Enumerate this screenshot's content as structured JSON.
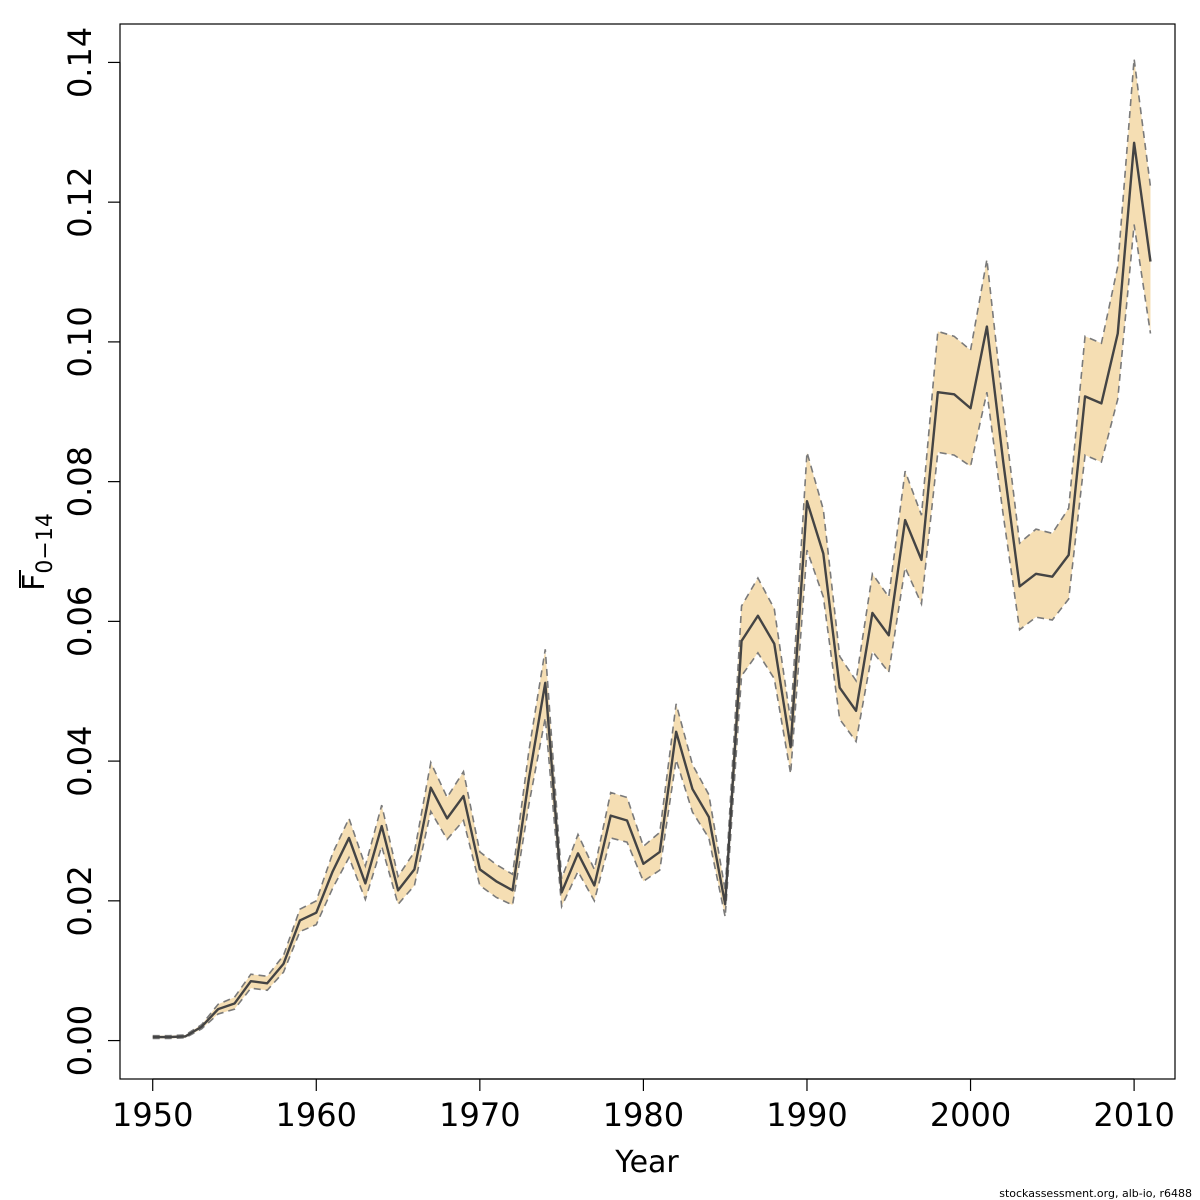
{
  "chart_data": {
    "type": "area",
    "xlabel": "Year",
    "ylabel_main": "F",
    "ylabel_sub": "0−14",
    "xlim": [
      1948,
      2012.5
    ],
    "ylim": [
      -0.0055,
      0.1455
    ],
    "x_ticks": [
      1950,
      1960,
      1970,
      1980,
      1990,
      2000,
      2010
    ],
    "x_tick_labels": [
      "1950",
      "1960",
      "1970",
      "1980",
      "1990",
      "2000",
      "2010"
    ],
    "y_ticks": [
      0.0,
      0.02,
      0.04,
      0.06,
      0.08,
      0.1,
      0.12,
      0.14
    ],
    "y_tick_labels": [
      "0.00",
      "0.02",
      "0.04",
      "0.06",
      "0.08",
      "0.10",
      "0.12",
      "0.14"
    ],
    "colors": {
      "band": "#f5deb3",
      "bound_line": "#7a7a7a",
      "median_line": "#444444",
      "axis": "#000000"
    },
    "grid": false,
    "credit": "stockassessment.org, alb-io, r6488",
    "x": [
      1950,
      1951,
      1952,
      1953,
      1954,
      1955,
      1956,
      1957,
      1958,
      1959,
      1960,
      1961,
      1962,
      1963,
      1964,
      1965,
      1966,
      1967,
      1968,
      1969,
      1970,
      1971,
      1972,
      1973,
      1974,
      1975,
      1976,
      1977,
      1978,
      1979,
      1980,
      1981,
      1982,
      1983,
      1984,
      1985,
      1986,
      1987,
      1988,
      1989,
      1990,
      1991,
      1992,
      1993,
      1994,
      1995,
      1996,
      1997,
      1998,
      1999,
      2000,
      2001,
      2002,
      2003,
      2004,
      2005,
      2006,
      2007,
      2008,
      2009,
      2010,
      2011
    ],
    "series": [
      {
        "name": "median",
        "values": [
          0.0005,
          0.0005,
          0.0006,
          0.002,
          0.0045,
          0.0053,
          0.0085,
          0.0082,
          0.011,
          0.0172,
          0.0183,
          0.0242,
          0.029,
          0.0225,
          0.0307,
          0.0215,
          0.0245,
          0.0362,
          0.0318,
          0.035,
          0.0245,
          0.0228,
          0.0215,
          0.0375,
          0.0512,
          0.0212,
          0.0268,
          0.0222,
          0.0322,
          0.0315,
          0.0253,
          0.027,
          0.0442,
          0.036,
          0.032,
          0.0195,
          0.0572,
          0.0608,
          0.0568,
          0.042,
          0.0772,
          0.0697,
          0.0505,
          0.0472,
          0.0612,
          0.058,
          0.0745,
          0.0688,
          0.0928,
          0.0925,
          0.0905,
          0.1022,
          0.0828,
          0.065,
          0.0668,
          0.0664,
          0.0695,
          0.0922,
          0.0912,
          0.1012,
          0.1285,
          0.1115
        ]
      },
      {
        "name": "upper",
        "values": [
          0.0007,
          0.0007,
          0.0008,
          0.0023,
          0.0052,
          0.0062,
          0.0095,
          0.0092,
          0.0122,
          0.0188,
          0.02,
          0.0268,
          0.0318,
          0.025,
          0.0337,
          0.0235,
          0.027,
          0.0398,
          0.0348,
          0.0385,
          0.027,
          0.0252,
          0.0238,
          0.0415,
          0.056,
          0.0232,
          0.0295,
          0.0245,
          0.0355,
          0.0348,
          0.0278,
          0.0298,
          0.0482,
          0.0395,
          0.0352,
          0.0215,
          0.0622,
          0.0662,
          0.0618,
          0.0458,
          0.0842,
          0.076,
          0.055,
          0.0515,
          0.0668,
          0.0635,
          0.0815,
          0.0752,
          0.1015,
          0.1008,
          0.0988,
          0.1118,
          0.0905,
          0.0712,
          0.0732,
          0.0726,
          0.0762,
          0.1008,
          0.0998,
          0.1108,
          0.1405,
          0.1222
        ]
      },
      {
        "name": "lower",
        "values": [
          0.0003,
          0.0003,
          0.0004,
          0.0017,
          0.0038,
          0.0045,
          0.0075,
          0.0072,
          0.0098,
          0.0156,
          0.0166,
          0.0218,
          0.0262,
          0.0202,
          0.0278,
          0.0195,
          0.0222,
          0.0328,
          0.0288,
          0.0315,
          0.0222,
          0.0205,
          0.0194,
          0.0338,
          0.0462,
          0.0192,
          0.0242,
          0.02,
          0.029,
          0.0284,
          0.0228,
          0.0244,
          0.0402,
          0.0327,
          0.029,
          0.0177,
          0.0522,
          0.0555,
          0.0518,
          0.0382,
          0.0702,
          0.0635,
          0.046,
          0.0428,
          0.0557,
          0.0527,
          0.0677,
          0.0625,
          0.0842,
          0.0838,
          0.0822,
          0.0928,
          0.0752,
          0.0588,
          0.0606,
          0.0602,
          0.0632,
          0.0838,
          0.0828,
          0.0918,
          0.1168,
          0.1012
        ]
      }
    ]
  }
}
